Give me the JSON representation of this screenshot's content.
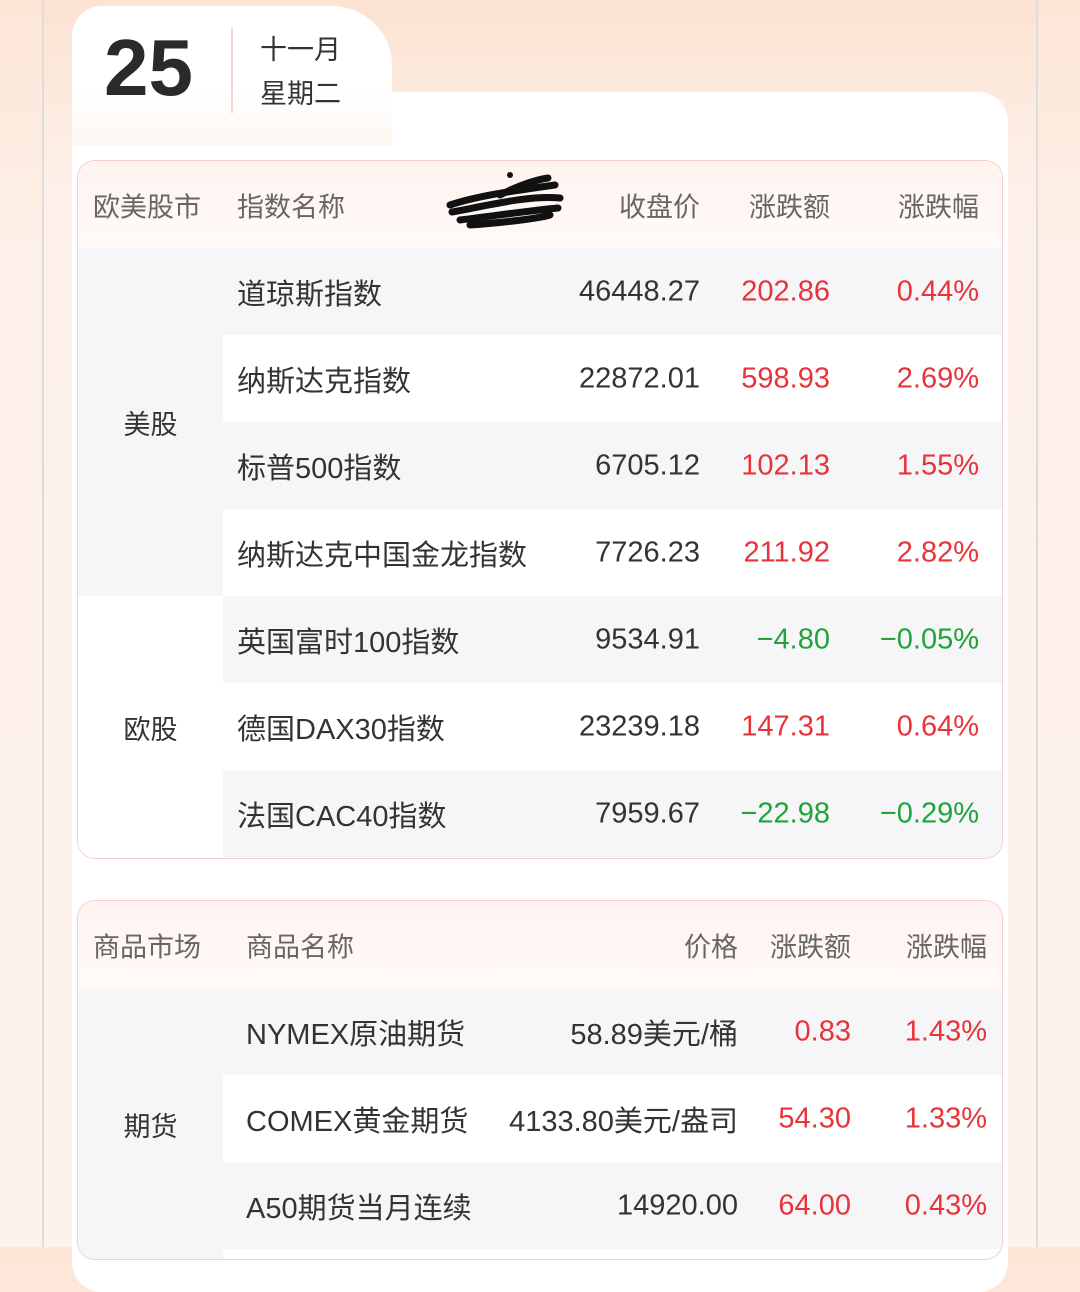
{
  "date": {
    "day": "25",
    "month": "十一月",
    "weekday": "星期二"
  },
  "colors": {
    "up": "#e8333a",
    "down": "#1fa33a"
  },
  "stocks": {
    "headers": {
      "market": "欧美股市",
      "name": "指数名称",
      "price": "收盘价",
      "change": "涨跌额",
      "pct": "涨跌幅"
    },
    "groups": [
      {
        "label": "美股"
      },
      {
        "label": "欧股"
      }
    ],
    "rows": [
      {
        "name": "道琼斯指数",
        "price": "46448.27",
        "change": "202.86",
        "pct": "0.44%",
        "dir": "up"
      },
      {
        "name": "纳斯达克指数",
        "price": "22872.01",
        "change": "598.93",
        "pct": "2.69%",
        "dir": "up"
      },
      {
        "name": "标普500指数",
        "price": "6705.12",
        "change": "102.13",
        "pct": "1.55%",
        "dir": "up"
      },
      {
        "name": "纳斯达克中国金龙指数",
        "price": "7726.23",
        "change": "211.92",
        "pct": "2.82%",
        "dir": "up"
      },
      {
        "name": "英国富时100指数",
        "price": "9534.91",
        "change": "−4.80",
        "pct": "−0.05%",
        "dir": "dn"
      },
      {
        "name": "德国DAX30指数",
        "price": "23239.18",
        "change": "147.31",
        "pct": "0.64%",
        "dir": "up"
      },
      {
        "name": "法国CAC40指数",
        "price": "7959.67",
        "change": "−22.98",
        "pct": "−0.29%",
        "dir": "dn"
      }
    ]
  },
  "commodities": {
    "headers": {
      "market": "商品市场",
      "name": "商品名称",
      "price": "价格",
      "change": "涨跌额",
      "pct": "涨跌幅"
    },
    "groups": [
      {
        "label": "期货"
      }
    ],
    "rows": [
      {
        "name": "NYMEX原油期货",
        "price": "58.89美元/桶",
        "change": "0.83",
        "pct": "1.43%",
        "dir": "up"
      },
      {
        "name": "COMEX黄金期货",
        "price": "4133.80美元/盎司",
        "change": "54.30",
        "pct": "1.33%",
        "dir": "up"
      },
      {
        "name": "A50期货当月连续",
        "price": "14920.00",
        "change": "64.00",
        "pct": "0.43%",
        "dir": "up"
      }
    ]
  }
}
